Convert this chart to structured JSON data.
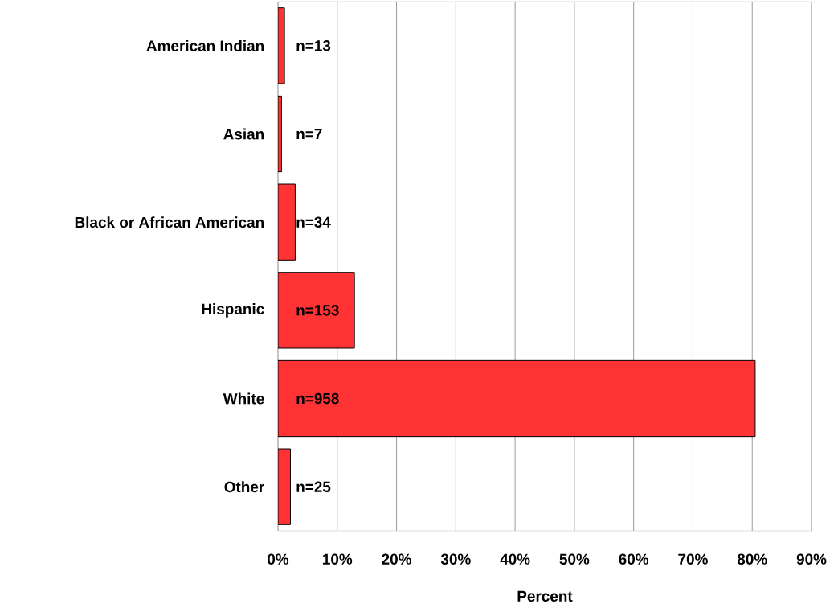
{
  "chart_data": {
    "type": "bar",
    "orientation": "horizontal",
    "xlabel": "Percent",
    "categories": [
      "American Indian",
      "Asian",
      "Black or African American",
      "Hispanic",
      "White",
      "Other"
    ],
    "values": [
      1.1,
      0.6,
      2.9,
      12.9,
      80.5,
      2.1
    ],
    "annotations": [
      "n=13",
      "n=7",
      "n=34",
      "n=153",
      "n=958",
      "n=25"
    ],
    "color": "#ff3333",
    "grid": "x",
    "xlim": [
      0,
      90
    ],
    "xticks": [
      {
        "value": 0,
        "label": "0%"
      },
      {
        "value": 10,
        "label": "10%"
      },
      {
        "value": 20,
        "label": "20%"
      },
      {
        "value": 30,
        "label": "30%"
      },
      {
        "value": 40,
        "label": "40%"
      },
      {
        "value": 50,
        "label": "50%"
      },
      {
        "value": 60,
        "label": "60%"
      },
      {
        "value": 70,
        "label": "70%"
      },
      {
        "value": 80,
        "label": "80%"
      },
      {
        "value": 90,
        "label": "90%"
      }
    ]
  }
}
